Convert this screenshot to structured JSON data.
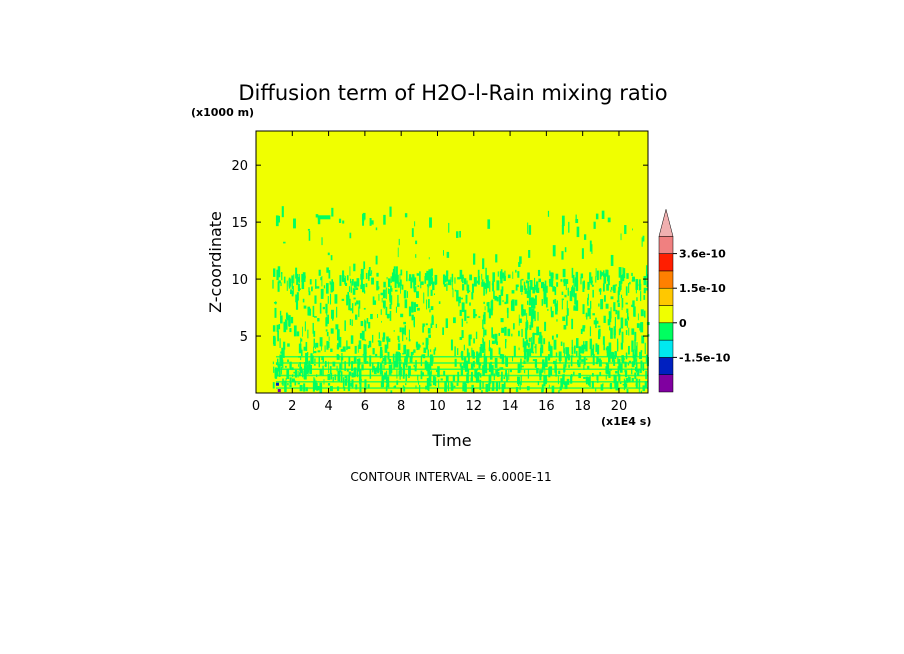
{
  "chart_data": {
    "type": "heatmap",
    "title": "Diffusion term of H2O-l-Rain mixing ratio",
    "xlabel": "Time",
    "xunit": "(x1E4 s)",
    "ylabel": "Z-coordinate",
    "yunit": "(x1000 m)",
    "xlim": [
      0,
      21.6
    ],
    "ylim": [
      0,
      23
    ],
    "xticks": [
      0,
      2,
      4,
      6,
      8,
      10,
      12,
      14,
      16,
      18,
      20
    ],
    "yticks": [
      5,
      10,
      15,
      20
    ],
    "footer": "CONTOUR INTERVAL = 6.000E-11",
    "background_level_color": "#f0ff00",
    "field_description": "Field is near zero (yellow) almost everywhere; scattered small negative patches (green) from about t=1 to t=21.6 at heights 0-16, densest below 12 with a broken band near 9-10; a small patch near z=15.5 at t=3.5-4; tiny blue/purple spots near t=1-1.5 at z<1.",
    "colorbar": {
      "levels": [
        {
          "color": "#8000a0"
        },
        {
          "color": "#0020c0"
        },
        {
          "color": "#00e8f0"
        },
        {
          "color": "#00ff60"
        },
        {
          "color": "#f0ff00"
        },
        {
          "color": "#ffc800"
        },
        {
          "color": "#ff8000"
        },
        {
          "color": "#ff1e00"
        },
        {
          "color": "#f08080"
        }
      ],
      "extend_color": "#f0b0b0",
      "labels": [
        "3.6e-10",
        "1.5e-10",
        "0",
        "-1.5e-10"
      ]
    }
  }
}
